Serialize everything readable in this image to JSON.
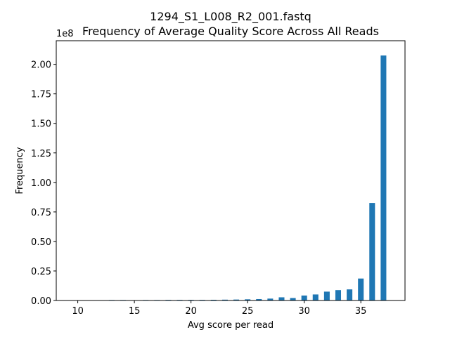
{
  "chart_data": {
    "type": "bar",
    "title": "1294_S1_L008_R2_001.fastq",
    "subtitle": "Frequency of Average Quality Score Across All Reads",
    "xlabel": "Avg score per read",
    "ylabel": "Frequency",
    "y_offset_label": "1e8",
    "xlim": [
      8.1,
      38.9
    ],
    "ylim": [
      0,
      2.2
    ],
    "y_unit_multiplier": 100000000,
    "x_ticks": [
      10,
      15,
      20,
      25,
      30,
      35
    ],
    "y_ticks": [
      "0.00",
      "0.25",
      "0.50",
      "0.75",
      "1.00",
      "1.25",
      "1.50",
      "1.75",
      "2.00"
    ],
    "bar_width": 0.5,
    "bar_color": "#1f77b4",
    "x": [
      10,
      11,
      12,
      13,
      14,
      15,
      16,
      17,
      18,
      19,
      20,
      21,
      22,
      23,
      24,
      25,
      26,
      27,
      28,
      29,
      30,
      31,
      32,
      33,
      34,
      35,
      36,
      37
    ],
    "values": [
      0.0002,
      0.0005,
      0.003,
      0.004,
      0.004,
      0.003,
      0.004,
      0.004,
      0.005,
      0.005,
      0.005,
      0.005,
      0.006,
      0.007,
      0.008,
      0.01,
      0.012,
      0.016,
      0.027,
      0.021,
      0.042,
      0.051,
      0.075,
      0.088,
      0.094,
      0.186,
      0.826,
      2.075
    ],
    "grid": false,
    "legend": "none"
  }
}
